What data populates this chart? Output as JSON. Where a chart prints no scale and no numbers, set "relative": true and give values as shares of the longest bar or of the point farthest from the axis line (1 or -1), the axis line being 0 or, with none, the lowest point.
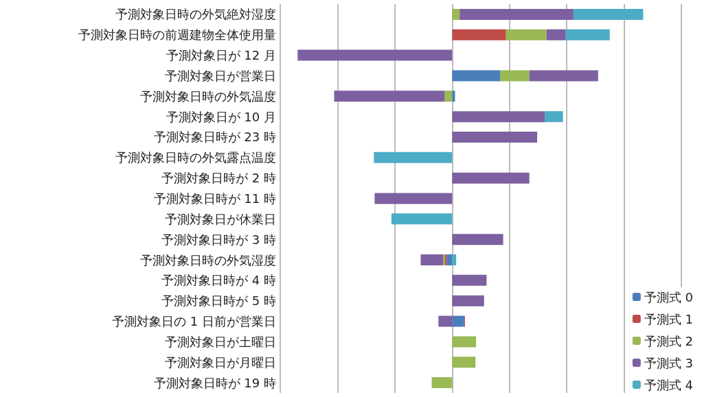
{
  "chart_data": {
    "type": "bar",
    "orientation": "horizontal",
    "stacked": true,
    "relative": true,
    "grid": "x",
    "legend": "bottom right",
    "categories": [
      "予測対象日時の外気絶対湿度",
      "予測対象日時の前週建物全体使用量",
      "予測対象日が 12 月",
      "予測対象日が営業日",
      "予測対象日時の外気温度",
      "予測対象日が 10 月",
      "予測対象日時が 23 時",
      "予測対象日時の外気露点温度",
      "予測対象日時が 2 時",
      "予測対象日時が 11 時",
      "予測対象日が休業日",
      "予測対象日時が 3 時",
      "予測対象日時の外気湿度",
      "予測対象日時が 4 時",
      "予測対象日時が 5 時",
      "予測対象日の 1 日前が営業日",
      "予測対象日が土曜日",
      "予測対象日が月曜日",
      "予測対象日時が 19 時"
    ],
    "series": [
      {
        "name": "予測式 0",
        "color": "#4a7ebb",
        "values": [
          null,
          null,
          null,
          0.251,
          0.015,
          null,
          null,
          null,
          null,
          null,
          null,
          null,
          -0.029,
          null,
          null,
          0.063,
          null,
          null,
          null
        ]
      },
      {
        "name": "予測式 1",
        "color": "#be4b48",
        "values": [
          null,
          0.282,
          null,
          null,
          null,
          null,
          null,
          null,
          null,
          null,
          null,
          null,
          -0.008,
          null,
          null,
          0.004,
          null,
          null,
          null
        ]
      },
      {
        "name": "予測式 2",
        "color": "#98b954",
        "values": [
          0.039,
          0.212,
          null,
          0.153,
          -0.04,
          null,
          null,
          null,
          null,
          null,
          null,
          null,
          -0.009,
          null,
          null,
          null,
          0.125,
          0.122,
          -0.107
        ]
      },
      {
        "name": "予測式 3",
        "color": "#7d60a0",
        "values": [
          0.596,
          0.101,
          -0.809,
          0.36,
          -0.578,
          0.485,
          0.445,
          null,
          0.404,
          -0.406,
          null,
          0.267,
          -0.119,
          0.18,
          0.167,
          -0.072,
          null,
          null,
          null
        ]
      },
      {
        "name": "予測式 4",
        "color": "#4bacc6",
        "values": [
          0.365,
          0.23,
          null,
          null,
          null,
          0.095,
          null,
          -0.41,
          null,
          null,
          -0.318,
          null,
          0.021,
          null,
          null,
          null,
          null,
          null,
          null
        ]
      }
    ]
  }
}
